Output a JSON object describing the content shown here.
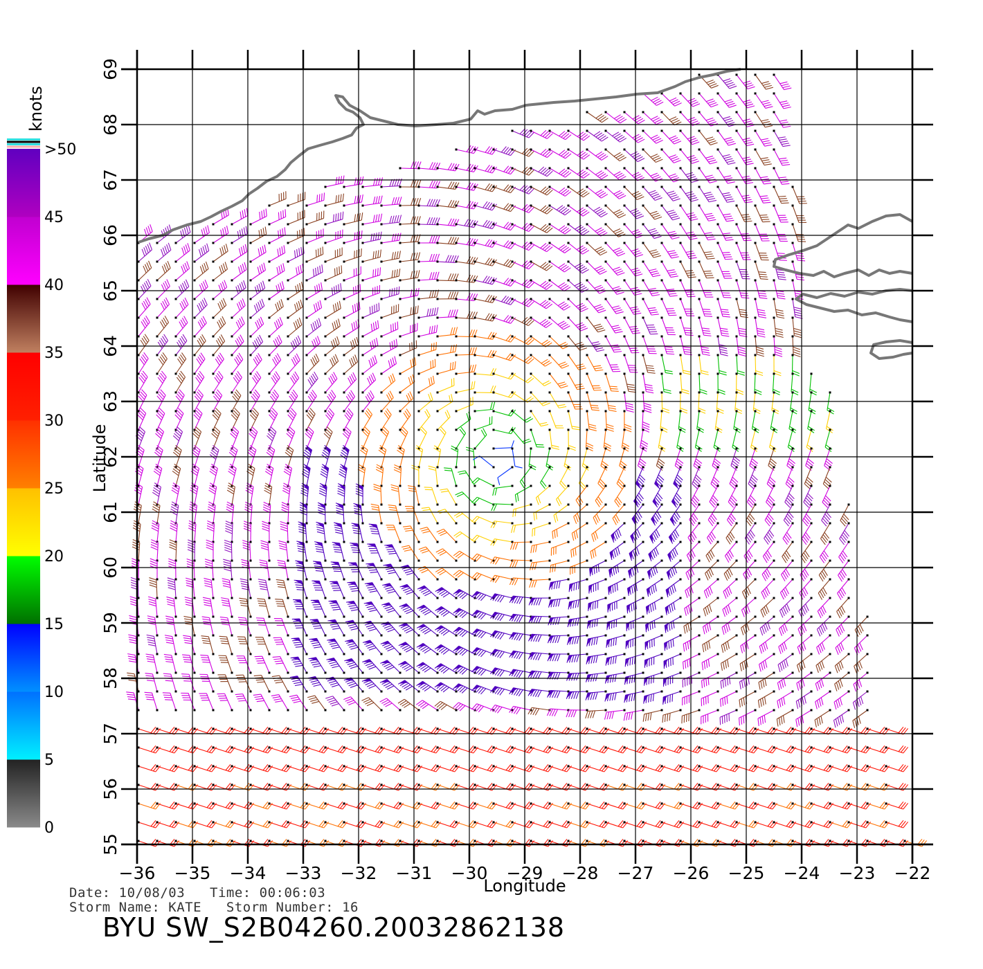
{
  "map": {
    "lon_range": [
      -36,
      -22
    ],
    "lat_range": [
      55,
      69
    ],
    "lon_ticks": [
      "−36",
      "−35",
      "−34",
      "−33",
      "−32",
      "−31",
      "−30",
      "−29",
      "−28",
      "−27",
      "−26",
      "−25",
      "−24",
      "−23",
      "−22"
    ],
    "lat_ticks": [
      "55",
      "56",
      "57",
      "58",
      "59",
      "60",
      "61",
      "62",
      "63",
      "64",
      "65",
      "66",
      "67",
      "68",
      "69"
    ],
    "xlabel": "Longitude",
    "ylabel": "Latitude",
    "grid": true,
    "storm_center": {
      "lon": -29.5,
      "lat": 62.0
    },
    "land_color": "#777777"
  },
  "legend": {
    "unit": "knots",
    "labels": [
      "0",
      "5",
      "10",
      "15",
      "20",
      "25",
      "30",
      "35",
      "40",
      "45",
      ">50"
    ],
    "color_bands": [
      {
        "from": 0,
        "to": 5,
        "colors": [
          "#8a8a8a",
          "#222222"
        ]
      },
      {
        "from": 5,
        "to": 10,
        "colors": [
          "#00f0ff",
          "#0070ff"
        ]
      },
      {
        "from": 10,
        "to": 15,
        "colors": [
          "#0090ff",
          "#0000ff"
        ]
      },
      {
        "from": 15,
        "to": 20,
        "colors": [
          "#007000",
          "#00ff00"
        ]
      },
      {
        "from": 20,
        "to": 25,
        "colors": [
          "#ffff00",
          "#ffc000"
        ]
      },
      {
        "from": 25,
        "to": 30,
        "colors": [
          "#ff8000",
          "#ff3000"
        ]
      },
      {
        "from": 30,
        "to": 35,
        "colors": [
          "#ff2000",
          "#ff0000"
        ]
      },
      {
        "from": 35,
        "to": 40,
        "colors": [
          "#c08060",
          "#400000"
        ]
      },
      {
        "from": 40,
        "to": 45,
        "colors": [
          "#ff00ff",
          "#c000d0"
        ]
      },
      {
        "from": 45,
        "to": 50,
        "colors": [
          "#b000c0",
          "#6000c0"
        ]
      }
    ]
  },
  "footer": {
    "date_label": "Date:",
    "date_value": "10/08/03",
    "time_label": "Time:",
    "time_value": "00:06:03",
    "storm_name_label": "Storm Name:",
    "storm_name_value": "KATE",
    "storm_number_label": "Storm Number:",
    "storm_number_value": "16",
    "product_title": "BYU SW_S2B04260.20032862138"
  }
}
